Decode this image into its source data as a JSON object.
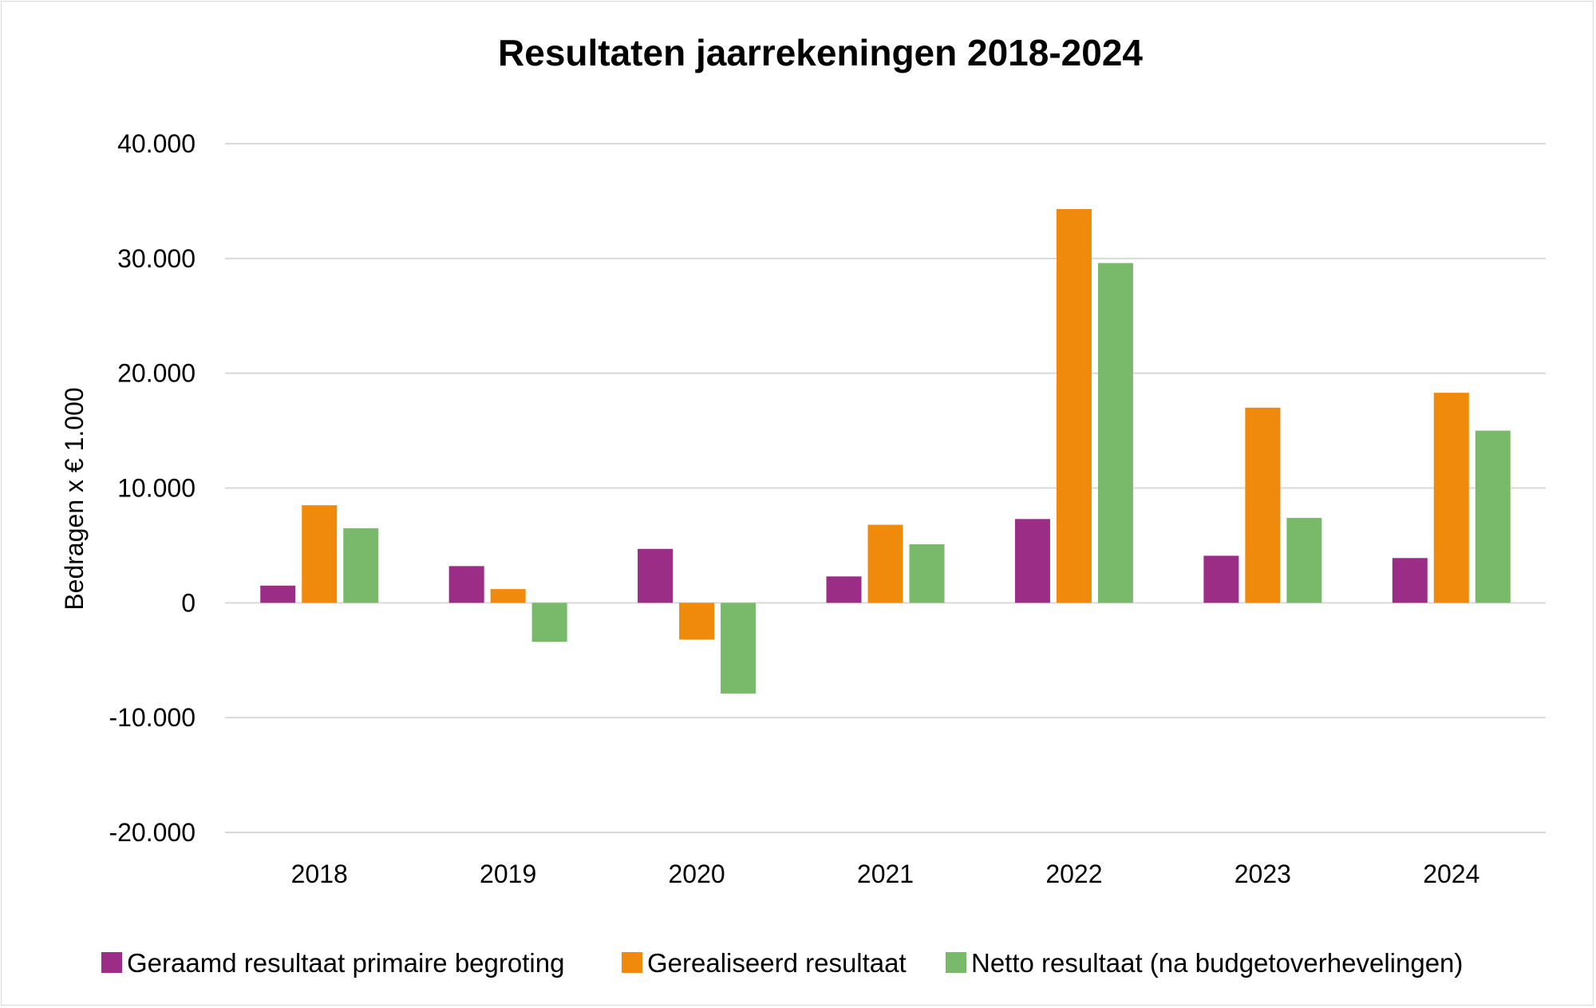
{
  "chart_data": {
    "type": "bar",
    "title": "Resultaten jaarrekeningen 2018-2024",
    "xlabel": "",
    "ylabel": "Bedragen x € 1.000",
    "ylim": [
      -20000,
      40000
    ],
    "yticks": [
      40000,
      30000,
      20000,
      10000,
      0,
      -10000,
      -20000
    ],
    "ytick_labels": [
      "40.000",
      "30.000",
      "20.000",
      "10.000",
      "0",
      "-10.000",
      "-20.000"
    ],
    "categories": [
      "2018",
      "2019",
      "2020",
      "2021",
      "2022",
      "2023",
      "2024"
    ],
    "grid": true,
    "legend_position": "bottom",
    "series": [
      {
        "name": "Geraamd resultaat primaire begroting",
        "color": "#9b2d87",
        "values": [
          1500,
          3200,
          4700,
          2300,
          7300,
          4100,
          3900
        ]
      },
      {
        "name": "Gerealiseerd resultaat",
        "color": "#f08a0c",
        "values": [
          8500,
          1200,
          -3200,
          6800,
          34300,
          17000,
          18300
        ]
      },
      {
        "name": "Netto resultaat (na budgetoverhevelingen)",
        "color": "#79ba6a",
        "values": [
          6500,
          -3400,
          -7900,
          5100,
          29600,
          7400,
          15000
        ]
      }
    ]
  }
}
